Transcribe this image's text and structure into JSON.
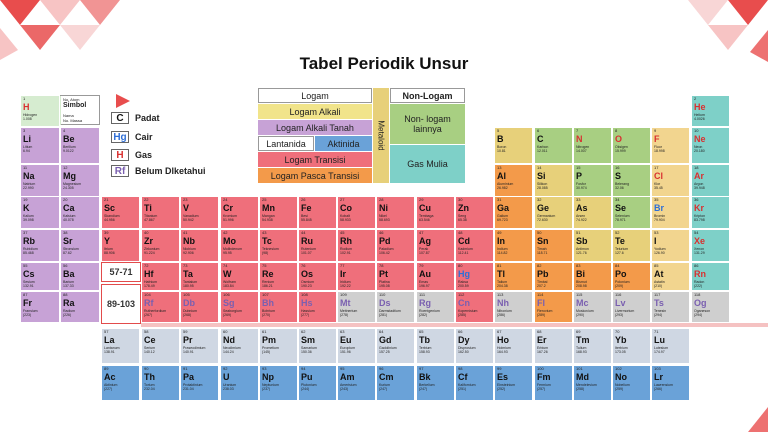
{
  "title": "Tabel Periodik Unsur",
  "legend_key": {
    "symbol": "H",
    "name": "Hidrogen",
    "mass": "1.008",
    "num_label": "No. Atom",
    "sym_label": "Simbol",
    "name_label": "Nama",
    "mass_label": "No. Massa",
    "num": "1"
  },
  "states": [
    {
      "badge": "C",
      "label": "Padat",
      "color": "#111111"
    },
    {
      "badge": "Hg",
      "label": "Cair",
      "color": "#2f6fd6"
    },
    {
      "badge": "H",
      "label": "Gas",
      "color": "#d93030"
    },
    {
      "badge": "Rf",
      "label": "Belum Dlketahui",
      "color": "#7a5fb0"
    }
  ],
  "categories": {
    "logam": "Logam",
    "non_logam": "Non-Logam",
    "alkali": "Logam Alkali",
    "alkali_tanah": "Logam Alkali Tanah",
    "lantanida": "Lantanida",
    "aktinida": "Aktinida",
    "transisi": "Logam Transisi",
    "pasca_transisi": "Logam Pasca Transisi",
    "metaloid": "Metaloid",
    "non_logam_lain": "Non- logam lainnya",
    "gas_mulia": "Gas Mulia"
  },
  "colors": {
    "alkali": "#f1e48a",
    "alkali_tanah": "#c7a2d6",
    "transisi": "#ef6f7b",
    "pasca": "#f39a4a",
    "metaloid": "#e7d07a",
    "nonlogam": "#a8cf82",
    "gas_mulia": "#7ed0c8",
    "lantanida": "#cfd7e3",
    "aktinida": "#6aa2d8",
    "unknown": "#cfcfcf",
    "hidrogen": "#d6ecd0",
    "halogen": "#f2d58f"
  },
  "ranges": [
    "57-71",
    "89-103"
  ],
  "elements": [
    {
      "n": "1",
      "s": "H",
      "name": "Hidrogen",
      "m": "1.008",
      "r": 1,
      "c": 1,
      "cat": "hidrogen"
    },
    {
      "n": "2",
      "s": "He",
      "name": "Helium",
      "m": "4.0026",
      "r": 1,
      "c": 18,
      "cat": "gas_mulia"
    },
    {
      "n": "3",
      "s": "Li",
      "name": "Litium",
      "m": "6.94",
      "r": 2,
      "c": 1,
      "cat": "alkali_tanah"
    },
    {
      "n": "4",
      "s": "Be",
      "name": "Berilium",
      "m": "9.0122",
      "r": 2,
      "c": 2,
      "cat": "alkali_tanah"
    },
    {
      "n": "5",
      "s": "B",
      "name": "Boron",
      "m": "10.81",
      "r": 2,
      "c": 13,
      "cat": "metaloid"
    },
    {
      "n": "6",
      "s": "C",
      "name": "Karbon",
      "m": "12.011",
      "r": 2,
      "c": 14,
      "cat": "nonlogam"
    },
    {
      "n": "7",
      "s": "N",
      "name": "Nitrogen",
      "m": "14.007",
      "r": 2,
      "c": 15,
      "cat": "nonlogam"
    },
    {
      "n": "8",
      "s": "O",
      "name": "Oksigen",
      "m": "15.999",
      "r": 2,
      "c": 16,
      "cat": "nonlogam"
    },
    {
      "n": "9",
      "s": "F",
      "name": "Fluor",
      "m": "18.998",
      "r": 2,
      "c": 17,
      "cat": "halogen"
    },
    {
      "n": "10",
      "s": "Ne",
      "name": "Neon",
      "m": "20.180",
      "r": 2,
      "c": 18,
      "cat": "gas_mulia"
    },
    {
      "n": "11",
      "s": "Na",
      "name": "Natrium",
      "m": "22.990",
      "r": 3,
      "c": 1,
      "cat": "alkali_tanah"
    },
    {
      "n": "12",
      "s": "Mg",
      "name": "Magnesium",
      "m": "24.305",
      "r": 3,
      "c": 2,
      "cat": "alkali_tanah"
    },
    {
      "n": "13",
      "s": "Al",
      "name": "Aluminium",
      "m": "26.982",
      "r": 3,
      "c": 13,
      "cat": "pasca"
    },
    {
      "n": "14",
      "s": "Si",
      "name": "Silikon",
      "m": "28.085",
      "r": 3,
      "c": 14,
      "cat": "metaloid"
    },
    {
      "n": "15",
      "s": "P",
      "name": "Fosfor",
      "m": "30.974",
      "r": 3,
      "c": 15,
      "cat": "nonlogam"
    },
    {
      "n": "16",
      "s": "S",
      "name": "Belerang",
      "m": "32.06",
      "r": 3,
      "c": 16,
      "cat": "nonlogam"
    },
    {
      "n": "17",
      "s": "Cl",
      "name": "Klor",
      "m": "35.45",
      "r": 3,
      "c": 17,
      "cat": "halogen"
    },
    {
      "n": "18",
      "s": "Ar",
      "name": "Argon",
      "m": "39.948",
      "r": 3,
      "c": 18,
      "cat": "gas_mulia"
    },
    {
      "n": "19",
      "s": "K",
      "name": "Kalium",
      "m": "39.098",
      "r": 4,
      "c": 1,
      "cat": "alkali_tanah"
    },
    {
      "n": "20",
      "s": "Ca",
      "name": "Kalsium",
      "m": "40.078",
      "r": 4,
      "c": 2,
      "cat": "alkali_tanah"
    },
    {
      "n": "21",
      "s": "Sc",
      "name": "Skandium",
      "m": "44.956",
      "r": 4,
      "c": 3,
      "cat": "transisi"
    },
    {
      "n": "22",
      "s": "Ti",
      "name": "Titanium",
      "m": "47.867",
      "r": 4,
      "c": 4,
      "cat": "transisi"
    },
    {
      "n": "23",
      "s": "V",
      "name": "Vanadium",
      "m": "50.942",
      "r": 4,
      "c": 5,
      "cat": "transisi"
    },
    {
      "n": "24",
      "s": "Cr",
      "name": "Kromium",
      "m": "51.996",
      "r": 4,
      "c": 6,
      "cat": "transisi"
    },
    {
      "n": "25",
      "s": "Mn",
      "name": "Mangan",
      "m": "54.938",
      "r": 4,
      "c": 7,
      "cat": "transisi"
    },
    {
      "n": "26",
      "s": "Fe",
      "name": "Besi",
      "m": "55.845",
      "r": 4,
      "c": 8,
      "cat": "transisi"
    },
    {
      "n": "27",
      "s": "Co",
      "name": "Kobalt",
      "m": "58.933",
      "r": 4,
      "c": 9,
      "cat": "transisi"
    },
    {
      "n": "28",
      "s": "Ni",
      "name": "Nikel",
      "m": "58.693",
      "r": 4,
      "c": 10,
      "cat": "transisi"
    },
    {
      "n": "29",
      "s": "Cu",
      "name": "Tembaga",
      "m": "63.546",
      "r": 4,
      "c": 11,
      "cat": "transisi"
    },
    {
      "n": "30",
      "s": "Zn",
      "name": "Seng",
      "m": "65.38",
      "r": 4,
      "c": 12,
      "cat": "transisi"
    },
    {
      "n": "31",
      "s": "Ga",
      "name": "Galium",
      "m": "69.723",
      "r": 4,
      "c": 13,
      "cat": "pasca"
    },
    {
      "n": "32",
      "s": "Ge",
      "name": "Germanium",
      "m": "72.630",
      "r": 4,
      "c": 14,
      "cat": "metaloid"
    },
    {
      "n": "33",
      "s": "As",
      "name": "Arsen",
      "m": "74.922",
      "r": 4,
      "c": 15,
      "cat": "metaloid"
    },
    {
      "n": "34",
      "s": "Se",
      "name": "Selenium",
      "m": "78.971",
      "r": 4,
      "c": 16,
      "cat": "nonlogam"
    },
    {
      "n": "35",
      "s": "Br",
      "name": "Bromin",
      "m": "79.904",
      "r": 4,
      "c": 17,
      "cat": "halogen"
    },
    {
      "n": "36",
      "s": "Kr",
      "name": "Kripton",
      "m": "83.798",
      "r": 4,
      "c": 18,
      "cat": "gas_mulia"
    },
    {
      "n": "37",
      "s": "Rb",
      "name": "Rubidium",
      "m": "85.468",
      "r": 5,
      "c": 1,
      "cat": "alkali_tanah"
    },
    {
      "n": "38",
      "s": "Sr",
      "name": "Stronsium",
      "m": "87.62",
      "r": 5,
      "c": 2,
      "cat": "alkali_tanah"
    },
    {
      "n": "39",
      "s": "Y",
      "name": "Itrium",
      "m": "88.906",
      "r": 5,
      "c": 3,
      "cat": "transisi"
    },
    {
      "n": "40",
      "s": "Zr",
      "name": "Zirkonium",
      "m": "91.224",
      "r": 5,
      "c": 4,
      "cat": "transisi"
    },
    {
      "n": "41",
      "s": "Nb",
      "name": "Niobium",
      "m": "92.906",
      "r": 5,
      "c": 5,
      "cat": "transisi"
    },
    {
      "n": "42",
      "s": "Mo",
      "name": "Molibdenum",
      "m": "95.95",
      "r": 5,
      "c": 6,
      "cat": "transisi"
    },
    {
      "n": "43",
      "s": "Tc",
      "name": "Teknesium",
      "m": "(98)",
      "r": 5,
      "c": 7,
      "cat": "transisi"
    },
    {
      "n": "44",
      "s": "Ru",
      "name": "Rutenium",
      "m": "101.07",
      "r": 5,
      "c": 8,
      "cat": "transisi"
    },
    {
      "n": "45",
      "s": "Rh",
      "name": "Rodium",
      "m": "102.91",
      "r": 5,
      "c": 9,
      "cat": "transisi"
    },
    {
      "n": "46",
      "s": "Pd",
      "name": "Paladium",
      "m": "106.42",
      "r": 5,
      "c": 10,
      "cat": "transisi"
    },
    {
      "n": "47",
      "s": "Ag",
      "name": "Perak",
      "m": "107.87",
      "r": 5,
      "c": 11,
      "cat": "transisi"
    },
    {
      "n": "48",
      "s": "Cd",
      "name": "Kadmium",
      "m": "112.41",
      "r": 5,
      "c": 12,
      "cat": "transisi"
    },
    {
      "n": "49",
      "s": "In",
      "name": "Indium",
      "m": "114.82",
      "r": 5,
      "c": 13,
      "cat": "pasca"
    },
    {
      "n": "50",
      "s": "Sn",
      "name": "Timah",
      "m": "118.71",
      "r": 5,
      "c": 14,
      "cat": "pasca"
    },
    {
      "n": "51",
      "s": "Sb",
      "name": "Antimon",
      "m": "121.76",
      "r": 5,
      "c": 15,
      "cat": "metaloid"
    },
    {
      "n": "52",
      "s": "Te",
      "name": "Telurium",
      "m": "127.6",
      "r": 5,
      "c": 16,
      "cat": "metaloid"
    },
    {
      "n": "53",
      "s": "I",
      "name": "Yodium",
      "m": "126.90",
      "r": 5,
      "c": 17,
      "cat": "halogen"
    },
    {
      "n": "54",
      "s": "Xe",
      "name": "Xenon",
      "m": "131.29",
      "r": 5,
      "c": 18,
      "cat": "gas_mulia"
    },
    {
      "n": "55",
      "s": "Cs",
      "name": "Sesium",
      "m": "132.91",
      "r": 6,
      "c": 1,
      "cat": "alkali_tanah"
    },
    {
      "n": "56",
      "s": "Ba",
      "name": "Barium",
      "m": "137.33",
      "r": 6,
      "c": 2,
      "cat": "alkali_tanah"
    },
    {
      "n": "72",
      "s": "Hf",
      "name": "Hafnium",
      "m": "178.49",
      "r": 6,
      "c": 4,
      "cat": "transisi"
    },
    {
      "n": "73",
      "s": "Ta",
      "name": "Tantalum",
      "m": "180.95",
      "r": 6,
      "c": 5,
      "cat": "transisi"
    },
    {
      "n": "74",
      "s": "W",
      "name": "Wolfram",
      "m": "183.84",
      "r": 6,
      "c": 6,
      "cat": "transisi"
    },
    {
      "n": "75",
      "s": "Re",
      "name": "Renium",
      "m": "186.21",
      "r": 6,
      "c": 7,
      "cat": "transisi"
    },
    {
      "n": "76",
      "s": "Os",
      "name": "Osmium",
      "m": "190.23",
      "r": 6,
      "c": 8,
      "cat": "transisi"
    },
    {
      "n": "77",
      "s": "Ir",
      "name": "Iridium",
      "m": "192.22",
      "r": 6,
      "c": 9,
      "cat": "transisi"
    },
    {
      "n": "78",
      "s": "Pt",
      "name": "Platina",
      "m": "195.08",
      "r": 6,
      "c": 10,
      "cat": "transisi"
    },
    {
      "n": "79",
      "s": "Au",
      "name": "Emas",
      "m": "196.97",
      "r": 6,
      "c": 11,
      "cat": "transisi"
    },
    {
      "n": "80",
      "s": "Hg",
      "name": "Raksa",
      "m": "200.59",
      "r": 6,
      "c": 12,
      "cat": "transisi"
    },
    {
      "n": "81",
      "s": "Tl",
      "name": "Talium",
      "m": "204.38",
      "r": 6,
      "c": 13,
      "cat": "pasca"
    },
    {
      "n": "82",
      "s": "Pb",
      "name": "Timbal",
      "m": "207.2",
      "r": 6,
      "c": 14,
      "cat": "pasca"
    },
    {
      "n": "83",
      "s": "Bi",
      "name": "Bismut",
      "m": "208.98",
      "r": 6,
      "c": 15,
      "cat": "pasca"
    },
    {
      "n": "84",
      "s": "Po",
      "name": "Polonium",
      "m": "(209)",
      "r": 6,
      "c": 16,
      "cat": "pasca"
    },
    {
      "n": "85",
      "s": "At",
      "name": "Astatin",
      "m": "(210)",
      "r": 6,
      "c": 17,
      "cat": "halogen"
    },
    {
      "n": "86",
      "s": "Rn",
      "name": "Radon",
      "m": "(222)",
      "r": 6,
      "c": 18,
      "cat": "gas_mulia"
    },
    {
      "n": "87",
      "s": "Fr",
      "name": "Fransium",
      "m": "(223)",
      "r": 7,
      "c": 1,
      "cat": "alkali_tanah"
    },
    {
      "n": "88",
      "s": "Ra",
      "name": "Radium",
      "m": "(226)",
      "r": 7,
      "c": 2,
      "cat": "alkali_tanah"
    },
    {
      "n": "104",
      "s": "Rf",
      "name": "Rutherfordium",
      "m": "(267)",
      "r": 7,
      "c": 4,
      "cat": "transisi"
    },
    {
      "n": "105",
      "s": "Db",
      "name": "Dubnium",
      "m": "(268)",
      "r": 7,
      "c": 5,
      "cat": "transisi"
    },
    {
      "n": "106",
      "s": "Sg",
      "name": "Seaborgium",
      "m": "(269)",
      "r": 7,
      "c": 6,
      "cat": "transisi"
    },
    {
      "n": "107",
      "s": "Bh",
      "name": "Bohrium",
      "m": "(270)",
      "r": 7,
      "c": 7,
      "cat": "transisi"
    },
    {
      "n": "108",
      "s": "Hs",
      "name": "Hassium",
      "m": "(277)",
      "r": 7,
      "c": 8,
      "cat": "transisi"
    },
    {
      "n": "109",
      "s": "Mt",
      "name": "Meitnerium",
      "m": "(278)",
      "r": 7,
      "c": 9,
      "cat": "unknown"
    },
    {
      "n": "110",
      "s": "Ds",
      "name": "Darmstadtium",
      "m": "(281)",
      "r": 7,
      "c": 10,
      "cat": "unknown"
    },
    {
      "n": "111",
      "s": "Rg",
      "name": "Roentgenium",
      "m": "(282)",
      "r": 7,
      "c": 11,
      "cat": "unknown"
    },
    {
      "n": "112",
      "s": "Cn",
      "name": "Kopernisium",
      "m": "(285)",
      "r": 7,
      "c": 12,
      "cat": "transisi"
    },
    {
      "n": "113",
      "s": "Nh",
      "name": "Nihonium",
      "m": "(286)",
      "r": 7,
      "c": 13,
      "cat": "unknown"
    },
    {
      "n": "114",
      "s": "Fl",
      "name": "Flerovium",
      "m": "(289)",
      "r": 7,
      "c": 14,
      "cat": "pasca"
    },
    {
      "n": "115",
      "s": "Mc",
      "name": "Moskovium",
      "m": "(290)",
      "r": 7,
      "c": 15,
      "cat": "unknown"
    },
    {
      "n": "116",
      "s": "Lv",
      "name": "Livermorium",
      "m": "(293)",
      "r": 7,
      "c": 16,
      "cat": "unknown"
    },
    {
      "n": "117",
      "s": "Ts",
      "name": "Tenesin",
      "m": "(294)",
      "r": 7,
      "c": 17,
      "cat": "unknown"
    },
    {
      "n": "118",
      "s": "Og",
      "name": "Oganeson",
      "m": "(294)",
      "r": 7,
      "c": 18,
      "cat": "unknown"
    },
    {
      "n": "57",
      "s": "La",
      "name": "Lantanum",
      "m": "138.91",
      "r": 9,
      "c": 3,
      "cat": "lantanida"
    },
    {
      "n": "58",
      "s": "Ce",
      "name": "Serium",
      "m": "140.12",
      "r": 9,
      "c": 4,
      "cat": "lantanida"
    },
    {
      "n": "59",
      "s": "Pr",
      "name": "Praseodimium",
      "m": "140.91",
      "r": 9,
      "c": 5,
      "cat": "lantanida"
    },
    {
      "n": "60",
      "s": "Nd",
      "name": "Neodimium",
      "m": "144.24",
      "r": 9,
      "c": 6,
      "cat": "lantanida"
    },
    {
      "n": "61",
      "s": "Pm",
      "name": "Prometium",
      "m": "(145)",
      "r": 9,
      "c": 7,
      "cat": "lantanida"
    },
    {
      "n": "62",
      "s": "Sm",
      "name": "Samarium",
      "m": "150.36",
      "r": 9,
      "c": 8,
      "cat": "lantanida"
    },
    {
      "n": "63",
      "s": "Eu",
      "name": "Europium",
      "m": "151.96",
      "r": 9,
      "c": 9,
      "cat": "lantanida"
    },
    {
      "n": "64",
      "s": "Gd",
      "name": "Gadolinium",
      "m": "157.25",
      "r": 9,
      "c": 10,
      "cat": "lantanida"
    },
    {
      "n": "65",
      "s": "Tb",
      "name": "Terbium",
      "m": "158.93",
      "r": 9,
      "c": 11,
      "cat": "lantanida"
    },
    {
      "n": "66",
      "s": "Dy",
      "name": "Disprosium",
      "m": "162.50",
      "r": 9,
      "c": 12,
      "cat": "lantanida"
    },
    {
      "n": "67",
      "s": "Ho",
      "name": "Holmium",
      "m": "164.93",
      "r": 9,
      "c": 13,
      "cat": "lantanida"
    },
    {
      "n": "68",
      "s": "Er",
      "name": "Erbium",
      "m": "167.26",
      "r": 9,
      "c": 14,
      "cat": "lantanida"
    },
    {
      "n": "69",
      "s": "Tm",
      "name": "Tulium",
      "m": "168.93",
      "r": 9,
      "c": 15,
      "cat": "lantanida"
    },
    {
      "n": "70",
      "s": "Yb",
      "name": "Iterbium",
      "m": "173.05",
      "r": 9,
      "c": 16,
      "cat": "lantanida"
    },
    {
      "n": "71",
      "s": "Lu",
      "name": "Lutesium",
      "m": "174.97",
      "r": 9,
      "c": 17,
      "cat": "lantanida"
    },
    {
      "n": "89",
      "s": "Ac",
      "name": "Aktinium",
      "m": "(227)",
      "r": 10,
      "c": 3,
      "cat": "aktinida"
    },
    {
      "n": "90",
      "s": "Th",
      "name": "Torium",
      "m": "232.04",
      "r": 10,
      "c": 4,
      "cat": "aktinida"
    },
    {
      "n": "91",
      "s": "Pa",
      "name": "Protaktinium",
      "m": "231.04",
      "r": 10,
      "c": 5,
      "cat": "aktinida"
    },
    {
      "n": "92",
      "s": "U",
      "name": "Uranium",
      "m": "238.03",
      "r": 10,
      "c": 6,
      "cat": "aktinida"
    },
    {
      "n": "93",
      "s": "Np",
      "name": "Neptunium",
      "m": "(237)",
      "r": 10,
      "c": 7,
      "cat": "aktinida"
    },
    {
      "n": "94",
      "s": "Pu",
      "name": "Plutonium",
      "m": "(244)",
      "r": 10,
      "c": 8,
      "cat": "aktinida"
    },
    {
      "n": "95",
      "s": "Am",
      "name": "Amerisium",
      "m": "(243)",
      "r": 10,
      "c": 9,
      "cat": "aktinida"
    },
    {
      "n": "96",
      "s": "Cm",
      "name": "Kurium",
      "m": "(247)",
      "r": 10,
      "c": 10,
      "cat": "aktinida"
    },
    {
      "n": "97",
      "s": "Bk",
      "name": "Berkelium",
      "m": "(247)",
      "r": 10,
      "c": 11,
      "cat": "aktinida"
    },
    {
      "n": "98",
      "s": "Cf",
      "name": "Kalifornium",
      "m": "(251)",
      "r": 10,
      "c": 12,
      "cat": "aktinida"
    },
    {
      "n": "99",
      "s": "Es",
      "name": "Einsteinium",
      "m": "(252)",
      "r": 10,
      "c": 13,
      "cat": "aktinida"
    },
    {
      "n": "100",
      "s": "Fm",
      "name": "Fermium",
      "m": "(257)",
      "r": 10,
      "c": 14,
      "cat": "aktinida"
    },
    {
      "n": "101",
      "s": "Md",
      "name": "Mendelevium",
      "m": "(258)",
      "r": 10,
      "c": 15,
      "cat": "aktinida"
    },
    {
      "n": "102",
      "s": "No",
      "name": "Nobelium",
      "m": "(259)",
      "r": 10,
      "c": 16,
      "cat": "aktinida"
    },
    {
      "n": "103",
      "s": "Lr",
      "name": "Lawrensium",
      "m": "(266)",
      "r": 10,
      "c": 17,
      "cat": "aktinida"
    }
  ]
}
